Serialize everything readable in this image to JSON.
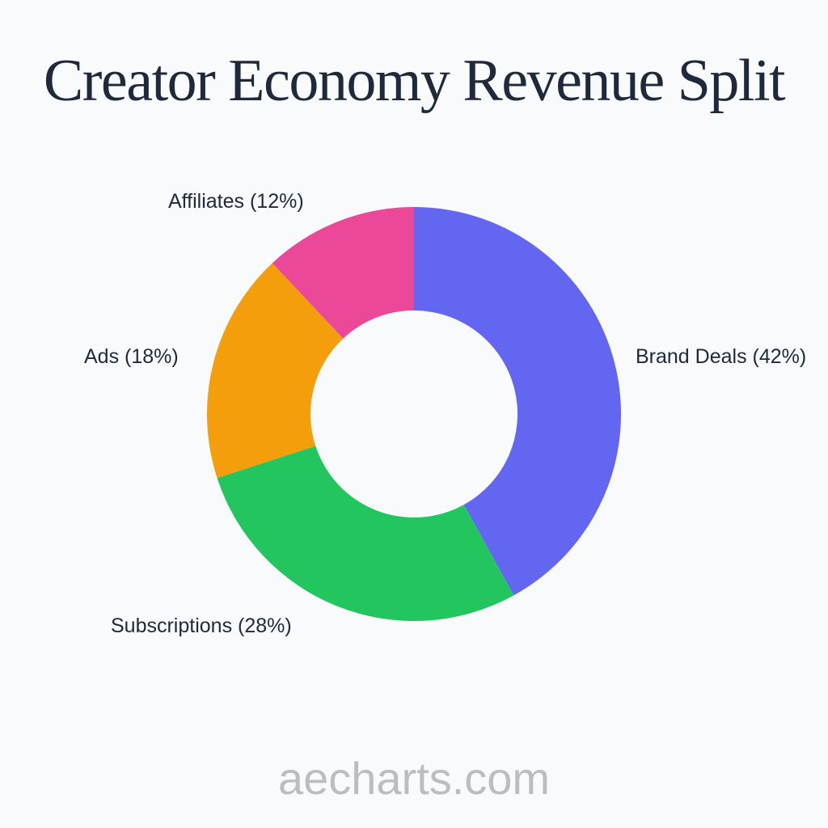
{
  "title": "Creator Economy Revenue Split",
  "watermark": "aecharts.com",
  "chart_data": {
    "type": "pie",
    "variant": "donut",
    "title": "Creator Economy Revenue Split",
    "categories": [
      "Brand Deals",
      "Subscriptions",
      "Ads",
      "Affiliates"
    ],
    "values": [
      42,
      28,
      18,
      12
    ],
    "unit": "%",
    "colors": [
      "#6366f1",
      "#22c55e",
      "#f59e0b",
      "#ec4899"
    ],
    "labels": [
      "Brand Deals (42%)",
      "Subscriptions (28%)",
      "Ads (18%)",
      "Affiliates (12%)"
    ],
    "start_angle": "top, clockwise",
    "legend": "none (outside labels)"
  }
}
